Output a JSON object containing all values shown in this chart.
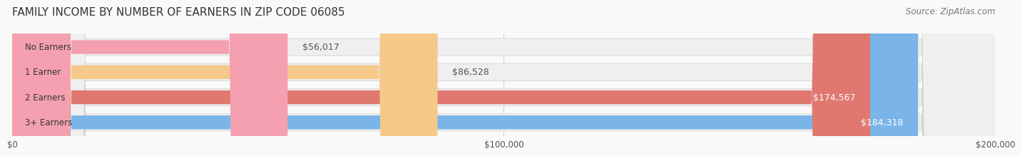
{
  "title": "FAMILY INCOME BY NUMBER OF EARNERS IN ZIP CODE 06085",
  "source": "Source: ZipAtlas.com",
  "categories": [
    "No Earners",
    "1 Earner",
    "2 Earners",
    "3+ Earners"
  ],
  "values": [
    56017,
    86528,
    174567,
    184318
  ],
  "bar_colors": [
    "#f4a0b0",
    "#f5c98a",
    "#e07870",
    "#7ab4e8"
  ],
  "track_color": "#efefef",
  "label_colors": [
    "#555555",
    "#555555",
    "#ffffff",
    "#ffffff"
  ],
  "max_value": 200000,
  "x_ticks": [
    0,
    100000,
    200000
  ],
  "x_tick_labels": [
    "$0",
    "$100,000",
    "$200,000"
  ],
  "background_color": "#f9f9f9",
  "title_fontsize": 11,
  "source_fontsize": 8.5,
  "bar_label_fontsize": 9,
  "category_fontsize": 8.5
}
